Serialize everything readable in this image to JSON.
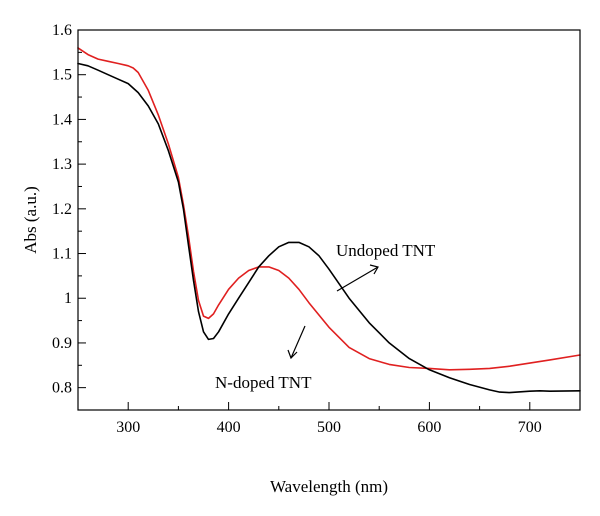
{
  "chart_data": {
    "type": "line",
    "title": "",
    "xlabel": "Wavelength (nm)",
    "ylabel": "Abs (a.u.)",
    "xlim": [
      250,
      750
    ],
    "ylim": [
      0.75,
      1.6
    ],
    "x_ticks": [
      300,
      400,
      500,
      600,
      700
    ],
    "y_ticks": [
      0.8,
      0.9,
      1,
      1.1,
      1.2,
      1.3,
      1.4,
      1.5,
      1.6
    ],
    "x_tick_labels": [
      "300",
      "400",
      "500",
      "600",
      "700"
    ],
    "y_tick_labels": [
      "0.8",
      "0.9",
      "1",
      "1.1",
      "1.2",
      "1.3",
      "1.4",
      "1.5",
      "1.6"
    ],
    "grid": false,
    "series": [
      {
        "name": "Undoped TNT",
        "color": "#000000",
        "x": [
          250,
          260,
          270,
          280,
          290,
          300,
          310,
          320,
          330,
          340,
          350,
          355,
          360,
          365,
          370,
          375,
          380,
          385,
          390,
          400,
          410,
          420,
          430,
          440,
          450,
          460,
          470,
          480,
          490,
          500,
          520,
          540,
          560,
          580,
          600,
          620,
          640,
          660,
          670,
          680,
          700,
          710,
          720,
          750
        ],
        "y": [
          1.525,
          1.52,
          1.51,
          1.5,
          1.49,
          1.48,
          1.46,
          1.43,
          1.39,
          1.33,
          1.26,
          1.2,
          1.12,
          1.04,
          0.97,
          0.925,
          0.908,
          0.91,
          0.925,
          0.965,
          1.0,
          1.035,
          1.07,
          1.095,
          1.115,
          1.125,
          1.125,
          1.115,
          1.095,
          1.065,
          1.0,
          0.945,
          0.9,
          0.865,
          0.84,
          0.822,
          0.807,
          0.795,
          0.79,
          0.789,
          0.792,
          0.793,
          0.792,
          0.793
        ]
      },
      {
        "name": "N-doped TNT",
        "color": "#e02020",
        "x": [
          250,
          260,
          270,
          280,
          290,
          300,
          305,
          310,
          320,
          330,
          340,
          350,
          355,
          360,
          365,
          370,
          375,
          380,
          385,
          390,
          400,
          410,
          420,
          430,
          440,
          450,
          460,
          470,
          480,
          500,
          520,
          540,
          560,
          580,
          600,
          620,
          640,
          660,
          680,
          700,
          720,
          750
        ],
        "y": [
          1.56,
          1.545,
          1.535,
          1.53,
          1.525,
          1.52,
          1.515,
          1.505,
          1.465,
          1.41,
          1.345,
          1.27,
          1.21,
          1.14,
          1.06,
          0.995,
          0.96,
          0.955,
          0.965,
          0.985,
          1.02,
          1.045,
          1.062,
          1.07,
          1.07,
          1.062,
          1.045,
          1.02,
          0.99,
          0.935,
          0.89,
          0.865,
          0.852,
          0.845,
          0.843,
          0.84,
          0.841,
          0.843,
          0.848,
          0.855,
          0.862,
          0.873
        ]
      }
    ],
    "annotations": [
      {
        "text": "Undoped TNT",
        "series": "Undoped TNT"
      },
      {
        "text": "N-doped TNT",
        "series": "N-doped TNT"
      }
    ]
  }
}
